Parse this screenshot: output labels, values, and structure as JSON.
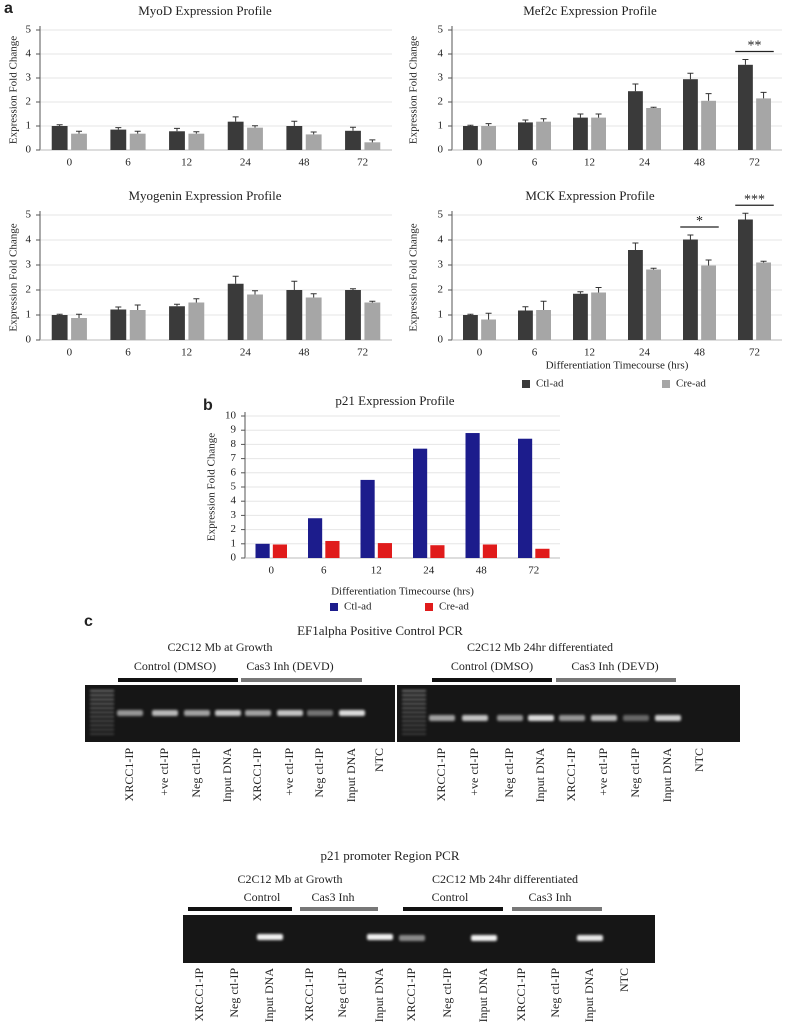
{
  "panel_labels": [
    "a",
    "b",
    "c"
  ],
  "chart_data": [
    {
      "type": "bar",
      "title": "MyoD Expression Profile",
      "ylabel": "Expression Fold Change",
      "categories": [
        "0",
        "6",
        "12",
        "24",
        "48",
        "72"
      ],
      "series": [
        {
          "name": "Ctl-ad",
          "color": "#3a3a3a",
          "values": [
            1.0,
            0.85,
            0.78,
            1.18,
            1.0,
            0.8
          ],
          "errors": [
            0.05,
            0.08,
            0.12,
            0.2,
            0.2,
            0.15
          ]
        },
        {
          "name": "Cre-ad",
          "color": "#a6a6a6",
          "values": [
            0.68,
            0.68,
            0.68,
            0.93,
            0.65,
            0.32
          ],
          "errors": [
            0.1,
            0.1,
            0.08,
            0.08,
            0.1,
            0.1
          ]
        }
      ],
      "ylim": [
        0,
        5
      ],
      "yticks": [
        0,
        1,
        2,
        3,
        4,
        5
      ],
      "grid": true
    },
    {
      "type": "bar",
      "title": "Mef2c Expression Profile",
      "ylabel": "Expression Fold Change",
      "categories": [
        "0",
        "6",
        "12",
        "24",
        "48",
        "72"
      ],
      "series": [
        {
          "name": "Ctl-ad",
          "color": "#3a3a3a",
          "values": [
            1.0,
            1.15,
            1.35,
            2.45,
            2.95,
            3.55
          ],
          "errors": [
            0.03,
            0.1,
            0.15,
            0.3,
            0.25,
            0.22
          ]
        },
        {
          "name": "Cre-ad",
          "color": "#a6a6a6",
          "values": [
            1.0,
            1.18,
            1.35,
            1.75,
            2.05,
            2.15
          ],
          "errors": [
            0.1,
            0.12,
            0.15,
            0.03,
            0.3,
            0.25
          ]
        }
      ],
      "ylim": [
        0,
        5
      ],
      "yticks": [
        0,
        1,
        2,
        3,
        4,
        5
      ],
      "grid": true,
      "annotations": [
        {
          "text": "**",
          "category": "72"
        }
      ]
    },
    {
      "type": "bar",
      "title": "Myogenin Expression Profile",
      "ylabel": "Expression Fold Change",
      "categories": [
        "0",
        "6",
        "12",
        "24",
        "48",
        "72"
      ],
      "series": [
        {
          "name": "Ctl-ad",
          "color": "#3a3a3a",
          "values": [
            1.0,
            1.22,
            1.35,
            2.25,
            2.0,
            2.0
          ],
          "errors": [
            0.03,
            0.1,
            0.08,
            0.3,
            0.35,
            0.05
          ]
        },
        {
          "name": "Cre-ad",
          "color": "#a6a6a6",
          "values": [
            0.88,
            1.2,
            1.5,
            1.82,
            1.7,
            1.5
          ],
          "errors": [
            0.15,
            0.2,
            0.15,
            0.15,
            0.15,
            0.05
          ]
        }
      ],
      "ylim": [
        0,
        5
      ],
      "yticks": [
        0,
        1,
        2,
        3,
        4,
        5
      ],
      "grid": true
    },
    {
      "type": "bar",
      "title": "MCK Expression Profile",
      "ylabel": "Expression Fold Change",
      "xlabel": "Differentiation Timecourse (hrs)",
      "legend": "bottom",
      "categories": [
        "0",
        "6",
        "12",
        "24",
        "48",
        "72"
      ],
      "series": [
        {
          "name": "Ctl-ad",
          "color": "#3a3a3a",
          "values": [
            1.0,
            1.18,
            1.85,
            3.6,
            4.02,
            4.82
          ],
          "errors": [
            0.03,
            0.15,
            0.08,
            0.28,
            0.18,
            0.25
          ]
        },
        {
          "name": "Cre-ad",
          "color": "#a6a6a6",
          "values": [
            0.82,
            1.2,
            1.9,
            2.82,
            2.98,
            3.1
          ],
          "errors": [
            0.25,
            0.35,
            0.2,
            0.05,
            0.22,
            0.05
          ]
        }
      ],
      "ylim": [
        0,
        5
      ],
      "yticks": [
        0,
        1,
        2,
        3,
        4,
        5
      ],
      "grid": true,
      "annotations": [
        {
          "text": "*",
          "category": "48"
        },
        {
          "text": "***",
          "category": "72"
        }
      ]
    },
    {
      "type": "bar",
      "title": "p21 Expression Profile",
      "ylabel": "Expression Fold Change",
      "xlabel": "Differentiation Timecourse (hrs)",
      "legend": "bottom",
      "categories": [
        "0",
        "6",
        "12",
        "24",
        "48",
        "72"
      ],
      "series": [
        {
          "name": "Ctl-ad",
          "color": "#1c1c8c",
          "values": [
            1.0,
            2.8,
            5.5,
            7.7,
            8.8,
            8.4
          ]
        },
        {
          "name": "Cre-ad",
          "color": "#e01b1b",
          "values": [
            0.95,
            1.2,
            1.05,
            0.9,
            0.95,
            0.65
          ]
        }
      ],
      "ylim": [
        0,
        10
      ],
      "yticks": [
        0,
        1,
        2,
        3,
        4,
        5,
        6,
        7,
        8,
        9,
        10
      ],
      "grid": true
    }
  ],
  "gels": [
    {
      "title": "EF1alpha Positive Control PCR",
      "panels": [
        {
          "heading": "C2C12 Mb at Growth",
          "groups": [
            "Control (DMSO)",
            "Cas3 Inh (DEVD)"
          ],
          "lanes": [
            "XRCC1-IP",
            "+ve ctl-IP",
            "Neg ctl-IP",
            "Input DNA",
            "XRCC1-IP",
            "+ve ctl-IP",
            "Neg ctl-IP",
            "Input DNA",
            "NTC"
          ]
        },
        {
          "heading": "C2C12 Mb 24hr differentiated",
          "groups": [
            "Control (DMSO)",
            "Cas3 Inh (DEVD)"
          ],
          "lanes": [
            "XRCC1-IP",
            "+ve ctl-IP",
            "Neg ctl-IP",
            "Input DNA",
            "XRCC1-IP",
            "+ve ctl-IP",
            "Neg ctl-IP",
            "Input DNA",
            "NTC"
          ]
        }
      ]
    },
    {
      "title": "p21 promoter Region PCR",
      "panels": [
        {
          "heading": "C2C12 Mb at Growth",
          "groups": [
            "Control",
            "Cas3 Inh"
          ],
          "lanes": [
            "XRCC1-IP",
            "Neg ctl-IP",
            "Input DNA",
            "XRCC1-IP",
            "Neg ctl-IP",
            "Input DNA"
          ]
        },
        {
          "heading": "C2C12 Mb 24hr differentiated",
          "groups": [
            "Control",
            "Cas3 Inh"
          ],
          "lanes": [
            "XRCC1-IP",
            "Neg ctl-IP",
            "Input DNA",
            "XRCC1-IP",
            "Neg ctl-IP",
            "Input DNA",
            "NTC"
          ]
        }
      ]
    }
  ]
}
